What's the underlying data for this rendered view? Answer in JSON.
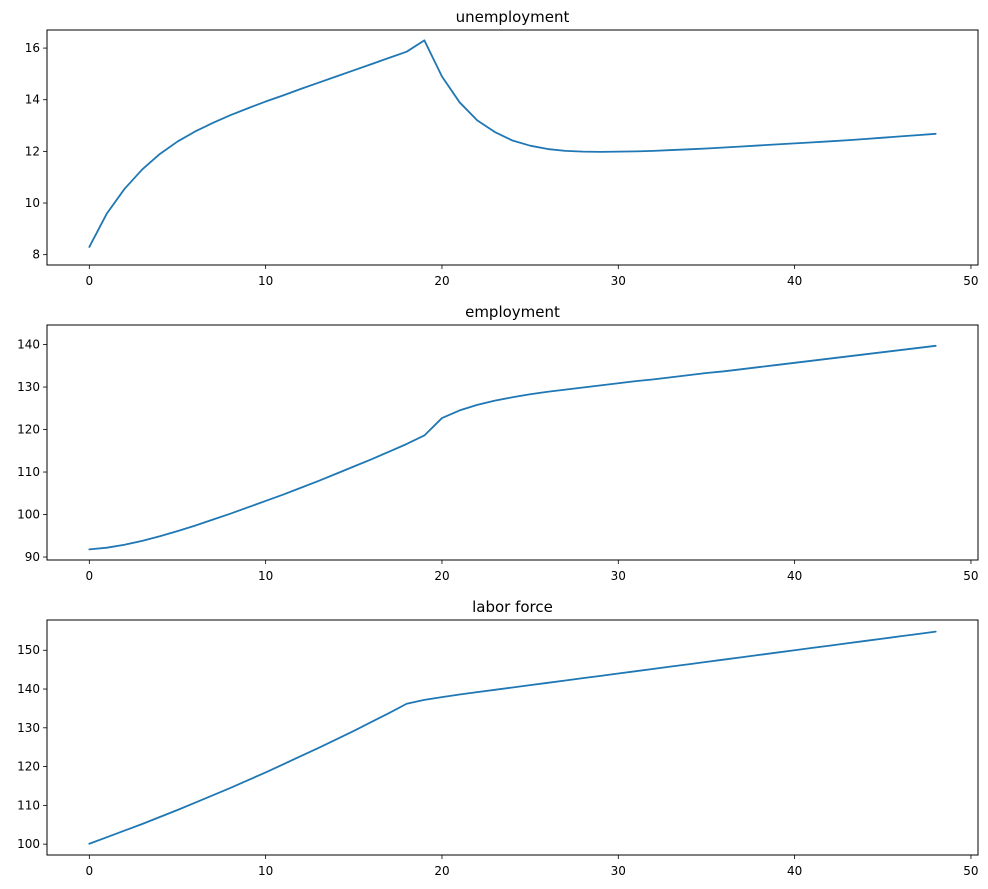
{
  "figure": {
    "background": "#ffffff",
    "series_color": "#1f77b4"
  },
  "chart_data": [
    {
      "type": "line",
      "title": "unemployment",
      "xlabel": "",
      "ylabel": "",
      "xlim": [
        -2.4,
        50.4
      ],
      "ylim": [
        7.6,
        16.7
      ],
      "xticks": [
        0,
        10,
        20,
        30,
        40,
        50
      ],
      "yticks": [
        8,
        10,
        12,
        14,
        16
      ],
      "grid": false,
      "x": [
        0,
        1,
        2,
        3,
        4,
        5,
        6,
        7,
        8,
        9,
        10,
        11,
        12,
        13,
        14,
        15,
        16,
        17,
        18,
        19,
        20,
        21,
        22,
        23,
        24,
        25,
        26,
        27,
        28,
        29,
        30,
        31,
        32,
        33,
        34,
        35,
        36,
        37,
        38,
        39,
        40,
        41,
        42,
        43,
        44,
        45,
        46,
        47,
        48
      ],
      "series": [
        {
          "values": [
            8.3,
            9.6,
            10.55,
            11.3,
            11.9,
            12.38,
            12.77,
            13.1,
            13.4,
            13.67,
            13.93,
            14.17,
            14.42,
            14.66,
            14.9,
            15.14,
            15.38,
            15.62,
            15.86,
            16.3,
            14.9,
            13.9,
            13.2,
            12.75,
            12.42,
            12.22,
            12.09,
            12.02,
            11.99,
            11.98,
            11.99,
            12.0,
            12.02,
            12.05,
            12.08,
            12.11,
            12.15,
            12.19,
            12.23,
            12.27,
            12.31,
            12.35,
            12.39,
            12.43,
            12.48,
            12.53,
            12.58,
            12.63,
            12.68
          ]
        }
      ]
    },
    {
      "type": "line",
      "title": "employment",
      "xlabel": "",
      "ylabel": "",
      "xlim": [
        -2.4,
        50.4
      ],
      "ylim": [
        89.3,
        144.6
      ],
      "xticks": [
        0,
        10,
        20,
        30,
        40,
        50
      ],
      "yticks": [
        90,
        100,
        110,
        120,
        130,
        140
      ],
      "grid": false,
      "x": [
        0,
        1,
        2,
        3,
        4,
        5,
        6,
        7,
        8,
        9,
        10,
        11,
        12,
        13,
        14,
        15,
        16,
        17,
        18,
        19,
        20,
        21,
        22,
        23,
        24,
        25,
        26,
        27,
        28,
        29,
        30,
        31,
        32,
        33,
        34,
        35,
        36,
        37,
        38,
        39,
        40,
        41,
        42,
        43,
        44,
        45,
        46,
        47,
        48
      ],
      "series": [
        {
          "values": [
            91.8,
            92.2,
            92.9,
            93.8,
            94.9,
            96.1,
            97.4,
            98.8,
            100.2,
            101.7,
            103.2,
            104.7,
            106.3,
            107.9,
            109.6,
            111.3,
            113.0,
            114.8,
            116.6,
            118.6,
            122.7,
            124.5,
            125.8,
            126.8,
            127.6,
            128.3,
            128.9,
            129.4,
            129.9,
            130.4,
            130.9,
            131.4,
            131.8,
            132.3,
            132.8,
            133.3,
            133.7,
            134.2,
            134.7,
            135.2,
            135.7,
            136.2,
            136.7,
            137.2,
            137.7,
            138.2,
            138.7,
            139.2,
            139.7
          ]
        }
      ]
    },
    {
      "type": "line",
      "title": "labor force",
      "xlabel": "",
      "ylabel": "",
      "xlim": [
        -2.4,
        50.4
      ],
      "ylim": [
        97.2,
        157.8
      ],
      "xticks": [
        0,
        10,
        20,
        30,
        40,
        50
      ],
      "yticks": [
        100,
        110,
        120,
        130,
        140,
        150
      ],
      "grid": false,
      "x": [
        0,
        1,
        2,
        3,
        4,
        5,
        6,
        7,
        8,
        9,
        10,
        11,
        12,
        13,
        14,
        15,
        16,
        17,
        18,
        19,
        20,
        21,
        22,
        23,
        24,
        25,
        26,
        27,
        28,
        29,
        30,
        31,
        32,
        33,
        34,
        35,
        36,
        37,
        38,
        39,
        40,
        41,
        42,
        43,
        44,
        45,
        46,
        47,
        48
      ],
      "series": [
        {
          "values": [
            100.1,
            101.8,
            103.5,
            105.2,
            107.0,
            108.8,
            110.7,
            112.6,
            114.5,
            116.5,
            118.5,
            120.6,
            122.7,
            124.8,
            127.0,
            129.2,
            131.5,
            133.8,
            136.2,
            137.2,
            137.9,
            138.6,
            139.2,
            139.8,
            140.4,
            141.0,
            141.6,
            142.2,
            142.8,
            143.4,
            144.0,
            144.6,
            145.2,
            145.8,
            146.4,
            147.0,
            147.6,
            148.2,
            148.8,
            149.4,
            150.0,
            150.6,
            151.2,
            151.8,
            152.4,
            153.0,
            153.6,
            154.2,
            154.8
          ]
        }
      ]
    }
  ]
}
